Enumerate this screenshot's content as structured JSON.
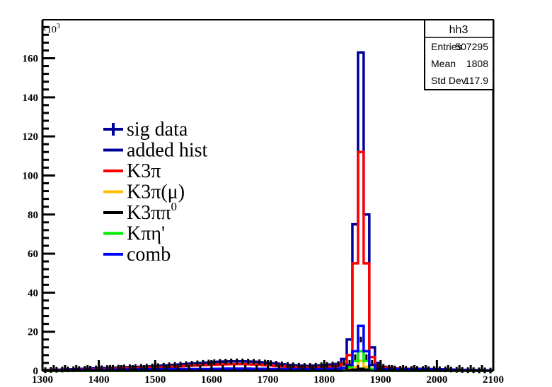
{
  "chart_data": {
    "type": "bar",
    "histogram_style": "step",
    "title": "",
    "xlabel": "",
    "ylabel": "",
    "y_multiplier_label": "×10",
    "y_multiplier_exp": "3",
    "xlim": [
      1300,
      2100
    ],
    "ylim": [
      0,
      168
    ],
    "bin_width": 10,
    "x_ticks": [
      "1300",
      "1400",
      "1500",
      "1600",
      "1700",
      "1800",
      "1900",
      "2000",
      "2100"
    ],
    "y_ticks": [
      "0",
      "20",
      "40",
      "60",
      "80",
      "100",
      "120",
      "140",
      "160"
    ],
    "grid": false,
    "legend_position": "left",
    "series": [
      {
        "name": "added hist",
        "color": "#000099",
        "values": [
          0.3,
          0.4,
          0.5,
          0.6,
          0.7,
          0.8,
          0.9,
          1.0,
          1.1,
          1.2,
          1.3,
          1.4,
          1.5,
          1.6,
          1.7,
          1.8,
          1.9,
          2.0,
          2.1,
          2.2,
          2.4,
          2.6,
          2.8,
          3.0,
          3.2,
          3.4,
          3.6,
          3.8,
          4.0,
          4.2,
          4.4,
          4.6,
          4.7,
          4.8,
          4.8,
          4.8,
          4.7,
          4.6,
          4.4,
          4.2,
          3.9,
          3.6,
          3.3,
          3.0,
          2.8,
          2.6,
          2.5,
          2.5,
          2.6,
          2.8,
          3.0,
          3.2,
          3.5,
          6,
          16,
          75,
          163,
          80,
          12,
          4,
          2.0,
          1.5,
          1.2,
          1.0,
          1.0,
          1.0,
          1.0,
          0.9,
          0.9,
          0.9,
          0.8,
          0.7,
          0.6,
          0.5,
          0.4,
          0.3,
          0.3,
          0.2,
          0.2,
          0.1
        ]
      },
      {
        "name": "K3π",
        "color": "#ff0000",
        "values": [
          0.2,
          0.3,
          0.3,
          0.4,
          0.5,
          0.5,
          0.6,
          0.7,
          0.7,
          0.8,
          0.9,
          0.9,
          1.0,
          1.1,
          1.2,
          1.2,
          1.3,
          1.4,
          1.5,
          1.6,
          1.7,
          1.8,
          2.0,
          2.1,
          2.3,
          2.4,
          2.6,
          2.7,
          2.9,
          3.0,
          3.1,
          3.2,
          3.3,
          3.4,
          3.4,
          3.4,
          3.3,
          3.2,
          3.1,
          2.9,
          2.7,
          2.4,
          2.2,
          2.0,
          1.8,
          1.7,
          1.6,
          1.6,
          1.7,
          1.8,
          1.9,
          2.1,
          2.4,
          3.5,
          8,
          55,
          112,
          55,
          7,
          2.5,
          1.5,
          1.2,
          1.0,
          0.9,
          0.9,
          0.9,
          0.8,
          0.8,
          0.8,
          0.8,
          0.7,
          0.6,
          0.5,
          0.4,
          0.3,
          0.3,
          0.2,
          0.2,
          0.1,
          0.1
        ]
      },
      {
        "name": "K3π(μ)",
        "color": "#ffc000",
        "values": [
          0,
          0,
          0,
          0,
          0,
          0,
          0,
          0,
          0,
          0,
          0,
          0,
          0,
          0,
          0,
          0,
          0,
          0,
          0,
          0,
          0,
          0,
          0,
          0,
          0,
          0,
          0,
          0,
          0,
          0,
          0.1,
          0.1,
          0.1,
          0.1,
          0.1,
          0.1,
          0.1,
          0.1,
          0,
          0,
          0,
          0,
          0,
          0,
          0,
          0,
          0,
          0,
          0,
          0,
          0,
          0,
          0,
          0.3,
          0.8,
          2,
          5,
          2,
          0.5,
          0.1,
          0,
          0,
          0,
          0,
          0,
          0,
          0,
          0,
          0,
          0,
          0,
          0,
          0,
          0,
          0,
          0,
          0,
          0,
          0,
          0
        ]
      },
      {
        "name": "K3ππ0",
        "color": "#000000",
        "values": [
          0,
          0,
          0,
          0,
          0,
          0,
          0,
          0,
          0,
          0,
          0,
          0,
          0,
          0,
          0,
          0,
          0,
          0,
          0,
          0,
          0,
          0,
          0,
          0,
          0,
          0,
          0,
          0,
          0,
          0,
          0,
          0,
          0,
          0,
          0,
          0,
          0,
          0,
          0,
          0,
          0,
          0,
          0,
          0,
          0,
          0,
          0,
          0,
          0,
          0,
          0,
          0,
          0,
          0.1,
          0.3,
          0.6,
          1,
          0.6,
          0.2,
          0,
          0,
          0,
          0,
          0,
          0,
          0,
          0,
          0,
          0,
          0,
          0,
          0,
          0,
          0,
          0,
          0,
          0,
          0,
          0,
          0
        ]
      },
      {
        "name": "Kπη'",
        "color": "#00ee00",
        "values": [
          0,
          0,
          0,
          0,
          0,
          0,
          0,
          0,
          0,
          0,
          0,
          0,
          0,
          0,
          0,
          0,
          0,
          0,
          0,
          0,
          0,
          0,
          0,
          0.1,
          0.1,
          0.1,
          0.2,
          0.2,
          0.2,
          0.2,
          0.3,
          0.3,
          0.3,
          0.3,
          0.3,
          0.3,
          0.2,
          0.2,
          0.2,
          0.1,
          0.1,
          0.1,
          0,
          0,
          0,
          0,
          0,
          0,
          0,
          0,
          0,
          0,
          0.2,
          1,
          2,
          5,
          10,
          5,
          1,
          0.2,
          0,
          0,
          0,
          0,
          0,
          0,
          0,
          0,
          0,
          0,
          0,
          0,
          0,
          0,
          0,
          0,
          0,
          0,
          0,
          0
        ]
      },
      {
        "name": "comb",
        "color": "#0000ff",
        "values": [
          0.1,
          0.1,
          0.2,
          0.2,
          0.3,
          0.3,
          0.4,
          0.4,
          0.5,
          0.5,
          0.5,
          0.6,
          0.6,
          0.6,
          0.7,
          0.7,
          0.7,
          0.8,
          0.8,
          0.8,
          0.9,
          0.9,
          0.9,
          0.9,
          0.9,
          0.9,
          0.9,
          0.9,
          0.9,
          0.9,
          1.0,
          1.0,
          1.1,
          1.1,
          1.1,
          1.1,
          1.1,
          1.0,
          1.0,
          1.0,
          0.9,
          0.9,
          0.9,
          0.9,
          0.9,
          0.9,
          0.9,
          0.9,
          0.9,
          0.9,
          0.9,
          1.0,
          1.1,
          1.5,
          3,
          10,
          23,
          10,
          3,
          1.2,
          0.8,
          0.8,
          0.8,
          0.8,
          0.8,
          0.8,
          0.8,
          0.8,
          0.8,
          0.8,
          0.7,
          0.6,
          0.5,
          0.4,
          0.3,
          0.3,
          0.2,
          0.2,
          0.1,
          0.1
        ]
      }
    ],
    "sig_data": {
      "name": "sig data",
      "color": "#000099",
      "marker_color": "#000000",
      "values": [
        0.3,
        0.4,
        0.5,
        0.6,
        0.7,
        0.8,
        0.9,
        1.0,
        1.1,
        1.2,
        1.3,
        1.4,
        1.5,
        1.6,
        1.7,
        1.8,
        1.9,
        2.0,
        2.1,
        2.2,
        2.4,
        2.6,
        2.8,
        3.0,
        3.2,
        3.4,
        3.6,
        3.8,
        4.0,
        4.2,
        4.4,
        4.6,
        4.7,
        4.8,
        4.8,
        4.8,
        4.7,
        4.6,
        4.4,
        4.2,
        3.9,
        3.6,
        3.3,
        3.0,
        2.8,
        2.6,
        2.5,
        2.5,
        2.6,
        2.8,
        3.0,
        3.2,
        3.5,
        4,
        4,
        7,
        16,
        7,
        4,
        2,
        2.0,
        1.5,
        1.2,
        1.0,
        1.0,
        1.0,
        1.0,
        0.9,
        0.9,
        0.9,
        0.8,
        0.7,
        0.6,
        0.5,
        0.4,
        0.3,
        0.3,
        0.2,
        0.2,
        0.1
      ]
    },
    "legend": [
      "sig data",
      "added hist",
      "K3π",
      "K3π(μ)",
      "K3ππ0",
      "Kπη'",
      "comb"
    ]
  },
  "stats": {
    "title": "hh3",
    "rows": [
      {
        "label": "Entries",
        "value": "507295"
      },
      {
        "label": "Mean",
        "value": "1808"
      },
      {
        "label": "Std Dev",
        "value": "117.9"
      }
    ]
  }
}
